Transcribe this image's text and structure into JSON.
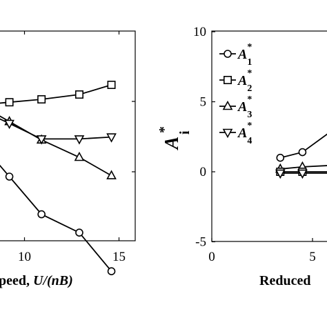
{
  "chart_data": [
    {
      "type": "line",
      "title": "",
      "xlabel_visible": "peed, U/(nB)",
      "xlabel_parts": [
        {
          "text": "peed, ",
          "italic": false
        },
        {
          "text": "U/(nB)",
          "italic": true
        }
      ],
      "ylabel": "",
      "xlim": [
        5,
        15
      ],
      "x_ticks": [
        "10",
        "15"
      ],
      "y_ticks": [],
      "grid": false,
      "series": [
        {
          "marker": "square",
          "x": [
            9.2,
            10.9,
            12.9,
            14.6
          ],
          "y": [
            7.2,
            7.5,
            8.0,
            9.0
          ]
        },
        {
          "marker": "triangle",
          "x": [
            9.2,
            10.9,
            12.9,
            14.6
          ],
          "y": [
            5.2,
            3.3,
            1.5,
            -0.4
          ]
        },
        {
          "marker": "nabla",
          "x": [
            9.2,
            10.9,
            12.9,
            14.6
          ],
          "y": [
            5.0,
            3.4,
            3.4,
            3.6
          ]
        },
        {
          "marker": "circle",
          "x": [
            9.2,
            10.9,
            12.9,
            14.6
          ],
          "y": [
            -0.5,
            -4.4,
            -6.3,
            -10.3
          ]
        }
      ]
    },
    {
      "type": "line",
      "title": "",
      "xlabel_visible": "Reduced",
      "ylabel": "A",
      "ylabel_sup": "*",
      "ylabel_sub": "i",
      "xlim": [
        0,
        6.5
      ],
      "ylim": [
        -5,
        10
      ],
      "x_ticks": [
        "0",
        "5"
      ],
      "y_ticks": [
        "-5",
        "0",
        "5",
        "10"
      ],
      "grid": false,
      "legend_position": "top-left",
      "legend": [
        {
          "base": "A",
          "sup": "*",
          "sub": "1",
          "marker": "circle"
        },
        {
          "base": "A",
          "sup": "*",
          "sub": "2",
          "marker": "square"
        },
        {
          "base": "A",
          "sup": "*",
          "sub": "3",
          "marker": "triangle"
        },
        {
          "base": "A",
          "sup": "*",
          "sub": "4",
          "marker": "nabla"
        }
      ],
      "series": [
        {
          "marker": "circle",
          "x": [
            3.4,
            4.5,
            6.5
          ],
          "y": [
            1.0,
            1.4,
            3.5
          ]
        },
        {
          "marker": "triangle",
          "x": [
            3.4,
            4.5,
            6.5
          ],
          "y": [
            0.2,
            0.35,
            0.5
          ]
        },
        {
          "marker": "square",
          "x": [
            3.4,
            4.5,
            6.5
          ],
          "y": [
            0.0,
            0.0,
            0.0
          ]
        },
        {
          "marker": "nabla",
          "x": [
            3.4,
            4.5,
            6.5
          ],
          "y": [
            -0.1,
            -0.1,
            -0.1
          ]
        }
      ]
    }
  ]
}
